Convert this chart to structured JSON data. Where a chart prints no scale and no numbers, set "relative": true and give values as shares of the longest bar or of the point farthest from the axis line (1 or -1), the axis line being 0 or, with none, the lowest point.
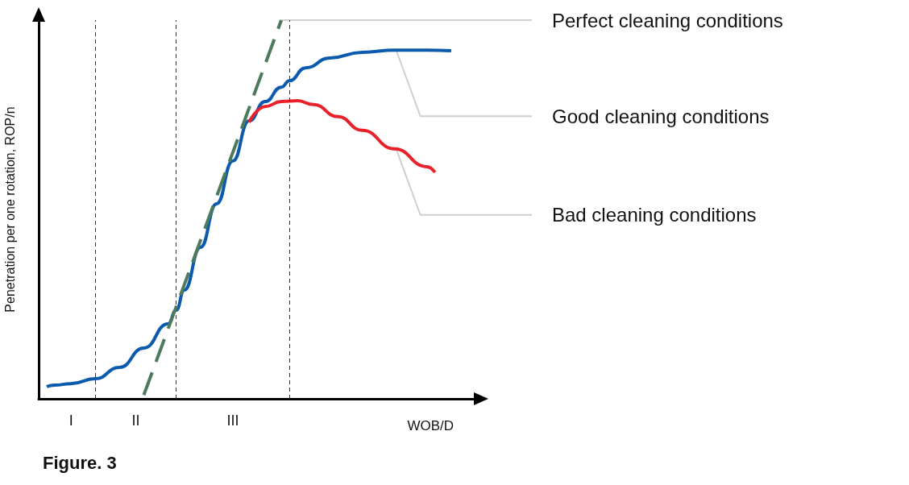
{
  "chart_data": {
    "type": "line",
    "title": "Figure. 3",
    "xlabel": "WOB/D",
    "ylabel": "Penetration per one rotation, ROP/n",
    "relative": true,
    "marker": "none",
    "categories": [
      null,
      null,
      null,
      null,
      "I",
      null,
      null,
      null,
      null,
      null,
      null,
      null,
      "II",
      null,
      null,
      null,
      null,
      null,
      null,
      null,
      null,
      null,
      null,
      null,
      "III",
      null,
      null,
      null,
      null,
      null,
      null,
      null,
      null,
      null,
      null,
      null,
      null,
      null,
      null,
      null,
      null,
      null,
      null,
      null,
      null,
      null,
      null,
      null,
      null,
      null,
      null,
      null,
      null,
      null,
      null
    ],
    "series": [
      {
        "name": "Good cleaning conditions",
        "color": "#0a5aad",
        "values": [
          null,
          0.032,
          0.036,
          null,
          0.04,
          null,
          null,
          0.053,
          null,
          null,
          0.083,
          null,
          null,
          0.134,
          null,
          null,
          0.198,
          0.234,
          0.287,
          null,
          0.4,
          null,
          0.515,
          null,
          0.628,
          null,
          0.734,
          null,
          0.785,
          null,
          0.823,
          0.84,
          null,
          0.874,
          null,
          null,
          0.9,
          null,
          null,
          null,
          0.915,
          null,
          null,
          null,
          0.921,
          null,
          null,
          null,
          0.921,
          null,
          null,
          0.919,
          null,
          null,
          null
        ]
      },
      {
        "name": "Bad cleaning conditions",
        "color": "#e8212a",
        "values": [
          null,
          null,
          null,
          null,
          null,
          null,
          null,
          null,
          null,
          null,
          null,
          null,
          null,
          null,
          null,
          null,
          null,
          null,
          null,
          null,
          null,
          null,
          null,
          null,
          null,
          null,
          0.73,
          null,
          0.772,
          null,
          0.785,
          null,
          0.787,
          null,
          0.777,
          null,
          null,
          0.745,
          null,
          null,
          0.709,
          null,
          null,
          null,
          0.66,
          null,
          null,
          null,
          0.613,
          0.598,
          null,
          null,
          null,
          null,
          null
        ]
      },
      {
        "name": "Perfect cleaning conditions",
        "color": "#4e7a5c",
        "line_style": "dashed",
        "values": [
          null,
          null,
          null,
          null,
          null,
          null,
          null,
          null,
          null,
          null,
          null,
          null,
          null,
          0.01,
          null,
          null,
          null,
          null,
          null,
          null,
          null,
          null,
          null,
          null,
          null,
          null,
          null,
          null,
          null,
          null,
          1,
          null,
          null,
          null,
          null,
          null,
          null,
          null,
          null,
          null,
          null,
          null,
          null,
          null,
          null,
          null,
          null,
          null,
          null,
          null,
          null,
          null,
          null,
          null,
          null
        ]
      }
    ]
  }
}
